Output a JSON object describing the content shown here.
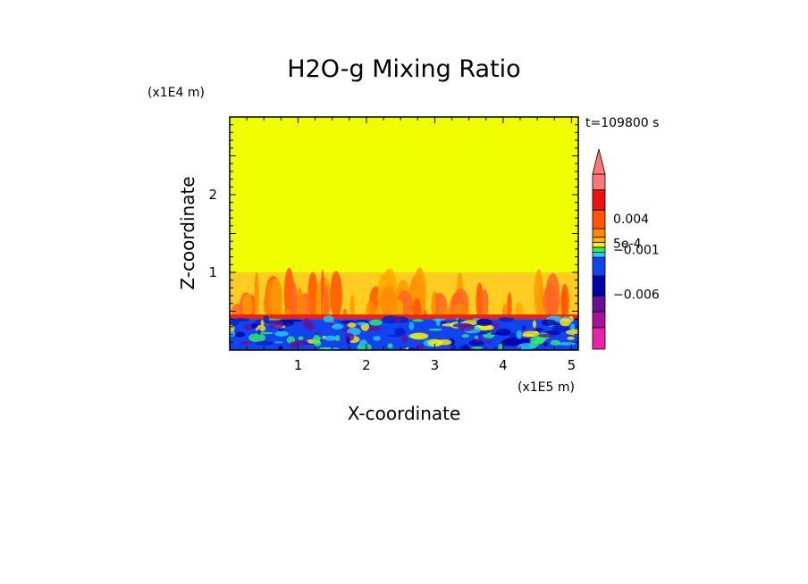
{
  "chart_data": {
    "type": "heatmap",
    "title": "H2O-g Mixing Ratio",
    "xlabel": "X-coordinate",
    "ylabel": "Z-coordinate",
    "x_multiplier": "(x1E5 m)",
    "y_multiplier": "(x1E4 m)",
    "time_label": "t=109800 s",
    "xlim": [
      0,
      5.1
    ],
    "ylim": [
      0,
      3.0
    ],
    "x_ticks": [
      1,
      2,
      3,
      4,
      5
    ],
    "x_tick_labels": [
      "1",
      "2",
      "3",
      "4",
      "5"
    ],
    "y_ticks": [
      1,
      2
    ],
    "y_tick_labels": [
      "1",
      "2"
    ],
    "background_color": "#f0ff00",
    "colorbar": {
      "colors_bottom_to_top": [
        "#ee22aa",
        "#aa1199",
        "#661199",
        "#0000aa",
        "#1144ee",
        "#22ccff",
        "#33ee66",
        "#ffee00",
        "#ffbb00",
        "#ff8800",
        "#ff5500",
        "#ee1111",
        "#ff7777"
      ],
      "labels": [
        {
          "text": "0.004",
          "value": 0.004
        },
        {
          "text": "5e-4",
          "value": 0.0005
        },
        {
          "text": "−0.001",
          "value": -0.001
        },
        {
          "text": "−0.006",
          "value": -0.006
        }
      ],
      "extend": "max"
    },
    "regions": [
      {
        "name": "upper-layer",
        "z_range": [
          1.0,
          3.0
        ],
        "color": "#f0ff00"
      },
      {
        "name": "plume-layer",
        "z_range": [
          0.4,
          1.0
        ],
        "color": "#ff8800"
      },
      {
        "name": "boundary-layer",
        "z_range": [
          0.0,
          0.4
        ],
        "color": "#1144ee"
      }
    ]
  }
}
